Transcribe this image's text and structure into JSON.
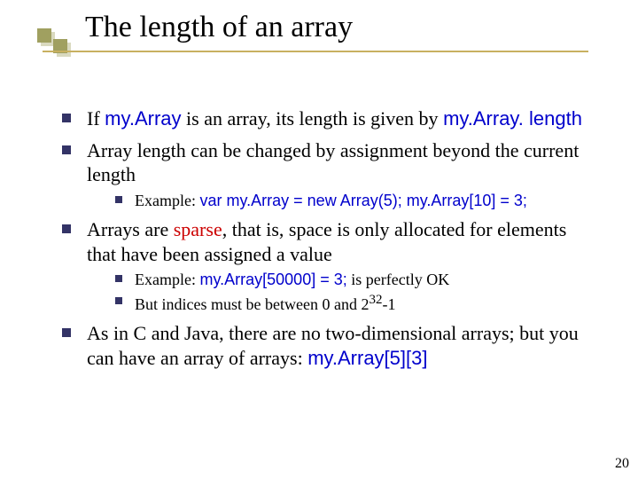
{
  "title": "The length of an array",
  "page_number": "20",
  "colors": {
    "background": "#ffffff",
    "text": "#000000",
    "code": "#0000cc",
    "emphasis_red": "#cc0000",
    "bullet": "#333366",
    "title_rule": "#c8b060",
    "accent_square": "#a0a060"
  },
  "fonts": {
    "body_family": "Times New Roman",
    "code_family": "Comic Sans MS",
    "title_size_pt": 34,
    "body_size_pt": 22,
    "sub_size_pt": 18
  },
  "bullets": [
    {
      "fragments": [
        {
          "t": "If "
        },
        {
          "t": "my.Array",
          "style": "code"
        },
        {
          "t": " is an array, its length is given by "
        },
        {
          "t": "my.Array. length",
          "style": "code"
        }
      ]
    },
    {
      "fragments": [
        {
          "t": "Array length can be changed by assignment beyond the current length"
        }
      ],
      "sub": [
        {
          "fragments": [
            {
              "t": " Example: "
            },
            {
              "t": "var my.Array = new Array(5); my.Array[10] = 3;",
              "style": "code"
            }
          ]
        }
      ]
    },
    {
      "fragments": [
        {
          "t": "Arrays are "
        },
        {
          "t": "sparse",
          "style": "red"
        },
        {
          "t": ", that is, space is only allocated for elements that have been assigned a value"
        }
      ],
      "sub": [
        {
          "fragments": [
            {
              "t": "Example: "
            },
            {
              "t": "my.Array[50000] = 3;",
              "style": "code"
            },
            {
              "t": " is perfectly OK"
            }
          ]
        },
        {
          "fragments": [
            {
              "t": "But indices must be between 0 and 2"
            },
            {
              "t": "32",
              "sup": true
            },
            {
              "t": "-1"
            }
          ]
        }
      ]
    },
    {
      "fragments": [
        {
          "t": "As in C and Java, there are no two-dimensional arrays; but you can have an array of arrays: "
        },
        {
          "t": "my.Array[5][3]",
          "style": "code"
        }
      ]
    }
  ]
}
